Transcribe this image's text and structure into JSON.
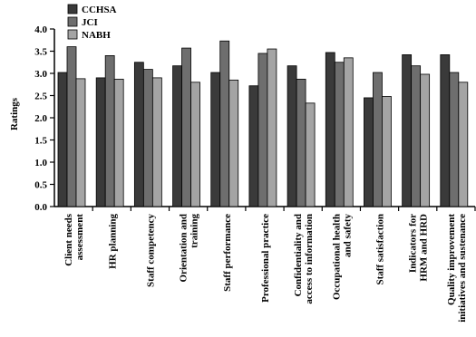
{
  "chart_data": {
    "type": "bar",
    "title": "",
    "xlabel": "",
    "ylabel": "Ratings",
    "ylim": [
      0,
      4
    ],
    "yticks": [
      "0.0",
      "0.5",
      "1.0",
      "1.5",
      "2.0",
      "2.5",
      "3.0",
      "3.5",
      "4.0"
    ],
    "grid": false,
    "legend_position": "top-left",
    "categories": [
      [
        "Client needs",
        "assessment"
      ],
      [
        "HR planning"
      ],
      [
        "Staff competency"
      ],
      [
        "Orientation and",
        "training"
      ],
      [
        "Staff performance"
      ],
      [
        "Professional practice"
      ],
      [
        "Confidentiality and",
        "access to information"
      ],
      [
        "Occupational health",
        "and safety"
      ],
      [
        "Staff satisfaction"
      ],
      [
        "Indicators for",
        "HRM and HRD"
      ],
      [
        "Quality improvement",
        "initiatives and sustenance"
      ]
    ],
    "series": [
      {
        "name": "CCHSA",
        "color": "#3a3a3a",
        "values": [
          3.02,
          2.9,
          3.25,
          3.17,
          3.02,
          2.72,
          3.17,
          3.47,
          2.45,
          3.42,
          3.42
        ]
      },
      {
        "name": "JCI",
        "color": "#6e6e6e",
        "values": [
          3.6,
          3.4,
          3.09,
          3.57,
          3.73,
          3.45,
          2.87,
          3.25,
          3.02,
          3.17,
          3.02
        ]
      },
      {
        "name": "NABH",
        "color": "#a4a4a4",
        "values": [
          2.88,
          2.87,
          2.9,
          2.8,
          2.85,
          3.55,
          2.33,
          3.35,
          2.48,
          2.98,
          2.8
        ]
      }
    ]
  }
}
